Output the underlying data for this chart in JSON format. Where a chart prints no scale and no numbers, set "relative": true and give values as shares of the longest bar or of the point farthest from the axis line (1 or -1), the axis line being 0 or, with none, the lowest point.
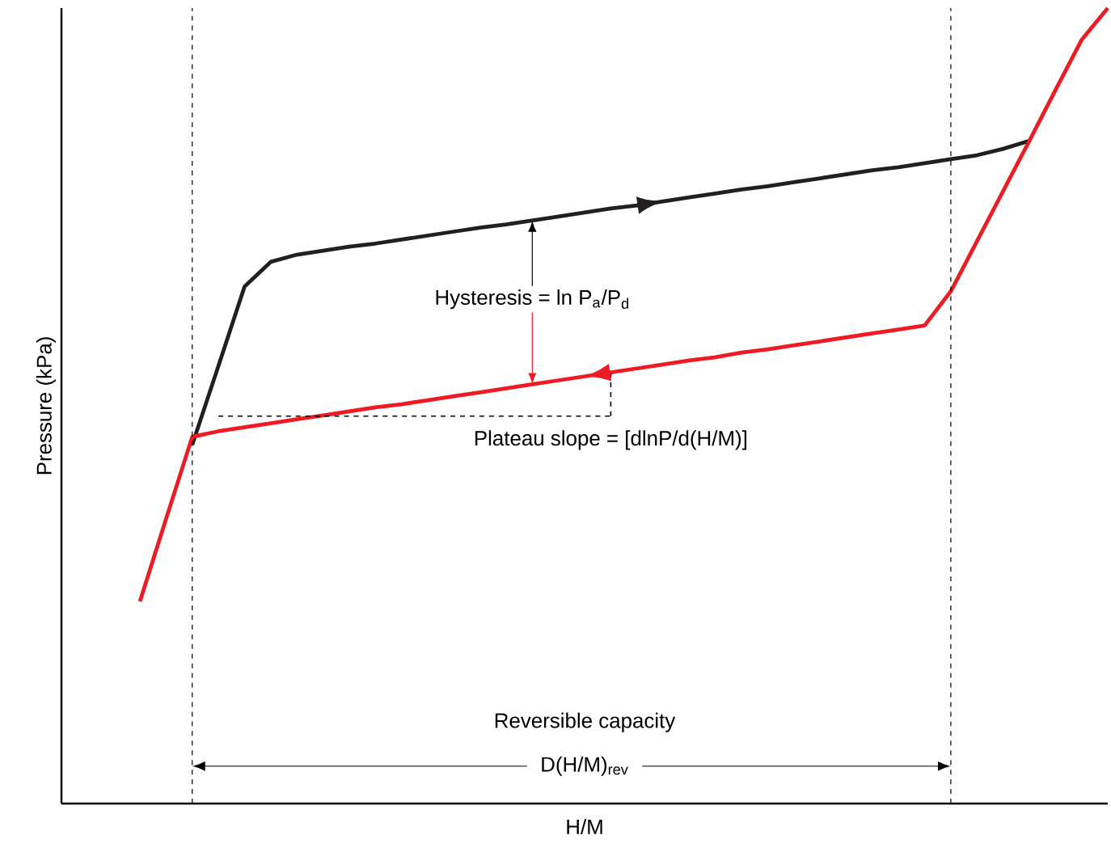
{
  "chart_data": {
    "type": "line",
    "relative": true,
    "xlabel": "H/M",
    "ylabel": "Pressure (kPa)",
    "categories": [
      null,
      null,
      null,
      null,
      null,
      null,
      null,
      null,
      null,
      null,
      null,
      null,
      null,
      null,
      null,
      null,
      null,
      null,
      null,
      null,
      null,
      null,
      null,
      null,
      null,
      null,
      null,
      null,
      null,
      null,
      null,
      null,
      null,
      null,
      null,
      null,
      null,
      null,
      null,
      null,
      null
    ],
    "series": [
      {
        "color": "#231f20",
        "values": [
          null,
          null,
          null,
          null,
          null,
          0.451,
          0.55,
          0.65,
          0.681,
          0.69,
          0.695,
          0.7,
          0.704,
          0.709,
          0.714,
          0.719,
          0.724,
          0.728,
          0.733,
          0.738,
          0.743,
          0.748,
          0.752,
          0.757,
          0.762,
          0.767,
          0.772,
          0.776,
          0.781,
          0.786,
          0.791,
          0.796,
          0.8,
          0.805,
          0.81,
          0.815,
          0.823,
          0.833,
          null,
          null,
          null
        ]
      },
      {
        "color": "#ed1c24",
        "values": [
          null,
          null,
          null,
          0.254,
          0.358,
          0.461,
          0.468,
          0.473,
          0.478,
          0.483,
          0.488,
          0.493,
          0.498,
          0.502,
          0.507,
          0.512,
          0.517,
          0.522,
          0.527,
          0.532,
          0.537,
          0.542,
          0.547,
          0.552,
          0.557,
          0.561,
          0.567,
          0.571,
          0.576,
          0.581,
          0.586,
          0.591,
          0.596,
          0.601,
          0.644,
          0.707,
          0.77,
          0.833,
          0.897,
          0.96,
          1.0
        ]
      },
      {
        "color": "#000000",
        "line_style": "dashed",
        "values": [
          null,
          null,
          null,
          null,
          null,
          null,
          0.487,
          0.487,
          0.487,
          0.487,
          0.487,
          0.487,
          0.487,
          0.487,
          0.487,
          0.487,
          0.487,
          0.487,
          0.487,
          0.487,
          0.487,
          0.487,
          null,
          null,
          null,
          null,
          null,
          null,
          null,
          null,
          null,
          null,
          null,
          null,
          null,
          null,
          null,
          null,
          null,
          null,
          null
        ]
      }
    ],
    "annotations": [
      "Hysteresis = ln P$_{a}$/P$_{d}$",
      "Plateau slope = [dlnP/d(H/M)]",
      "Reversible capacity",
      "D(H/M)$_{rev}$"
    ]
  }
}
